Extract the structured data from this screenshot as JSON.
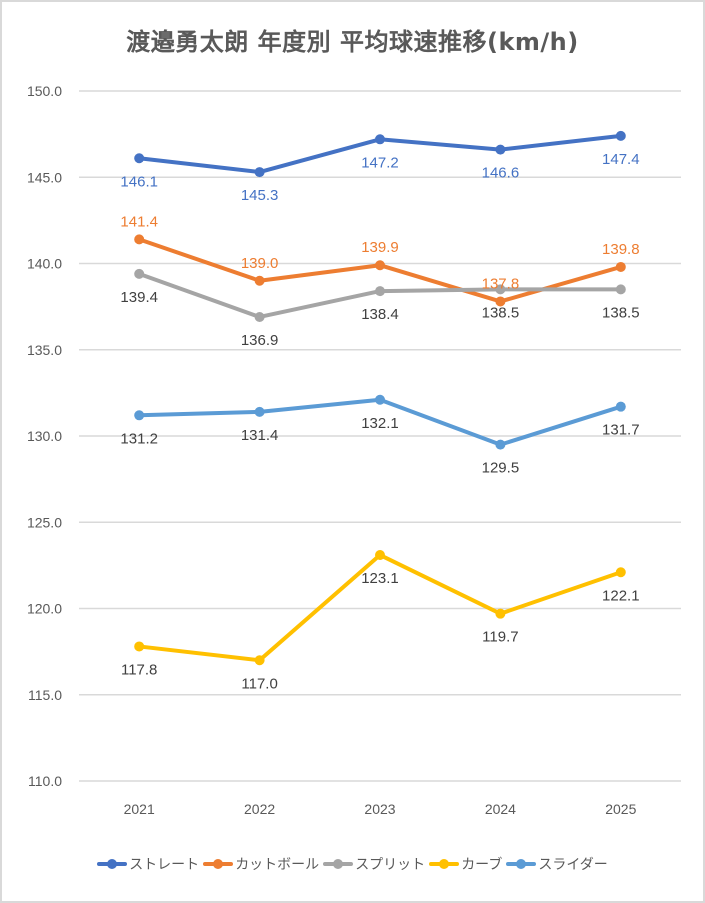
{
  "chart_data": {
    "type": "line",
    "title": "渡邉勇太朗 年度別 平均球速推移(km/h)",
    "xlabel": "",
    "ylabel": "",
    "categories": [
      "2021",
      "2022",
      "2023",
      "2024",
      "2025"
    ],
    "ylim": [
      110.0,
      150.0
    ],
    "yticks": [
      "110.0",
      "115.0",
      "120.0",
      "125.0",
      "130.0",
      "135.0",
      "140.0",
      "145.0",
      "150.0"
    ],
    "grid": true,
    "legend_position": "bottom",
    "series": [
      {
        "name": "ストレート",
        "color": "#4472c4",
        "label_color": "#4472c4",
        "label_pos": [
          "below",
          "below",
          "below",
          "below",
          "below"
        ],
        "values": [
          146.1,
          145.3,
          147.2,
          146.6,
          147.4
        ],
        "labels": [
          "146.1",
          "145.3",
          "147.2",
          "146.6",
          "147.4"
        ]
      },
      {
        "name": "カットボール",
        "color": "#ed7d31",
        "label_color": "#ed7d31",
        "label_pos": [
          "above",
          "above",
          "above",
          "above",
          "above"
        ],
        "values": [
          141.4,
          139.0,
          139.9,
          137.8,
          139.8
        ],
        "labels": [
          "141.4",
          "139.0",
          "139.9",
          "137.8",
          "139.8"
        ]
      },
      {
        "name": "スプリット",
        "color": "#a5a5a5",
        "label_color": "#404040",
        "label_pos": [
          "below",
          "below",
          "below",
          "below",
          "below"
        ],
        "values": [
          139.4,
          136.9,
          138.4,
          138.5,
          138.5
        ],
        "labels": [
          "139.4",
          "136.9",
          "138.4",
          "138.5",
          "138.5"
        ]
      },
      {
        "name": "カーブ",
        "color": "#ffc000",
        "label_color": "#404040",
        "label_pos": [
          "below",
          "below",
          "below",
          "below",
          "below"
        ],
        "values": [
          117.8,
          117.0,
          123.1,
          119.7,
          122.1
        ],
        "labels": [
          "117.8",
          "117.0",
          "123.1",
          "119.7",
          "122.1"
        ]
      },
      {
        "name": "スライダー",
        "color": "#5b9bd5",
        "label_color": "#404040",
        "label_pos": [
          "below",
          "below",
          "below",
          "below",
          "below"
        ],
        "values": [
          131.2,
          131.4,
          132.1,
          129.5,
          131.7
        ],
        "labels": [
          "131.2",
          "131.4",
          "132.1",
          "129.5",
          "131.7"
        ]
      }
    ]
  }
}
